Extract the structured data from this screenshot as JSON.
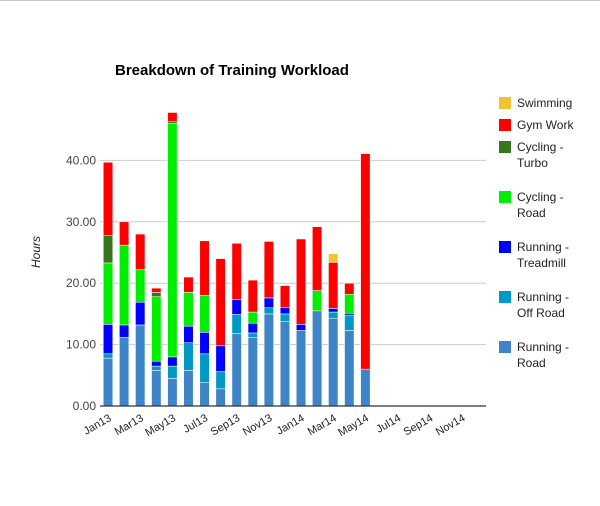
{
  "chart_data": {
    "type": "bar",
    "stacked": true,
    "title": "Breakdown of Training Workload",
    "ylabel": "Hours",
    "xlabel": "",
    "ylim": [
      0,
      50
    ],
    "yticks": [
      "0.00",
      "10.00",
      "20.00",
      "30.00",
      "40.00"
    ],
    "xtick_labels": [
      "Jan13",
      "Mar13",
      "May13",
      "Jul13",
      "Sep13",
      "Nov13",
      "Jan14",
      "Mar14",
      "May14",
      "Jul14",
      "Sep14",
      "Nov14"
    ],
    "categories": [
      "Jan13",
      "Feb13",
      "Mar13",
      "Apr13",
      "May13",
      "Jun13",
      "Jul13",
      "Aug13",
      "Sep13",
      "Oct13",
      "Nov13",
      "Dec13",
      "Jan14",
      "Feb14",
      "Mar14",
      "Apr14",
      "May14",
      "Jun14",
      "Jul14",
      "Aug14",
      "Sep14",
      "Oct14",
      "Nov14",
      "Dec14"
    ],
    "legend_position": "right",
    "grid": true,
    "series": [
      {
        "name": "Running - Road",
        "color": "#3d85c6",
        "values": [
          7.8,
          11.2,
          13.2,
          5.8,
          4.5,
          5.8,
          3.8,
          2.8,
          11.8,
          11.2,
          15.0,
          13.8,
          12.3,
          15.5,
          14.3,
          12.3,
          6.0,
          0,
          0,
          0,
          0,
          0,
          0,
          0
        ]
      },
      {
        "name": "Running - Off Road",
        "color": "#0099c6",
        "values": [
          0.7,
          0,
          0,
          0.7,
          2.0,
          4.5,
          4.7,
          2.8,
          3.1,
          0.7,
          1.0,
          1.2,
          0,
          0,
          1.0,
          2.5,
          0,
          0,
          0,
          0,
          0,
          0,
          0,
          0
        ]
      },
      {
        "name": "Running - Treadmill",
        "color": "#0000ff",
        "values": [
          4.8,
          2.0,
          3.7,
          0.8,
          1.5,
          2.7,
          3.5,
          4.2,
          2.4,
          1.6,
          1.6,
          1.0,
          1.0,
          0,
          0.6,
          0.3,
          0,
          0,
          0,
          0,
          0,
          0,
          0,
          0
        ]
      },
      {
        "name": "Cycling - Road",
        "color": "#00ee00",
        "values": [
          10.0,
          13.0,
          5.3,
          10.5,
          38.0,
          5.5,
          6.0,
          0,
          0,
          1.8,
          0,
          0,
          0,
          3.3,
          0,
          3.1,
          0,
          0,
          0,
          0,
          0,
          0,
          0,
          0
        ]
      },
      {
        "name": "Cycling - Turbo",
        "color": "#38761d",
        "values": [
          4.5,
          0,
          0,
          0.7,
          0.3,
          0,
          0,
          0,
          0,
          0,
          0,
          0,
          0,
          0,
          0,
          0,
          0,
          0,
          0,
          0,
          0,
          0,
          0,
          0
        ]
      },
      {
        "name": "Gym Work",
        "color": "#ff0000",
        "values": [
          11.9,
          3.8,
          5.8,
          0.7,
          1.5,
          2.5,
          8.9,
          14.2,
          9.2,
          5.2,
          9.2,
          3.6,
          13.9,
          10.4,
          7.5,
          1.8,
          35.1,
          0,
          0,
          0,
          0,
          0,
          0,
          0
        ]
      },
      {
        "name": "Swimming",
        "color": "#f1c232",
        "values": [
          0,
          0,
          0,
          0,
          0,
          0,
          0,
          0,
          0,
          0,
          0,
          0,
          0,
          0,
          1.4,
          0,
          0,
          0,
          0,
          0,
          0,
          0,
          0,
          0
        ]
      }
    ],
    "legend_labels": [
      {
        "series": "Swimming",
        "lines": [
          "Swimming"
        ]
      },
      {
        "series": "Gym Work",
        "lines": [
          "Gym Work"
        ]
      },
      {
        "series": "Cycling - Turbo",
        "lines": [
          "Cycling -",
          "Turbo"
        ]
      },
      {
        "series": "Cycling - Road",
        "lines": [
          "Cycling -",
          "Road"
        ]
      },
      {
        "series": "Running - Treadmill",
        "lines": [
          "Running -",
          "Treadmill"
        ]
      },
      {
        "series": "Running - Off Road",
        "lines": [
          "Running -",
          "Off Road"
        ]
      },
      {
        "series": "Running - Road",
        "lines": [
          "Running -",
          "Road"
        ]
      }
    ]
  }
}
